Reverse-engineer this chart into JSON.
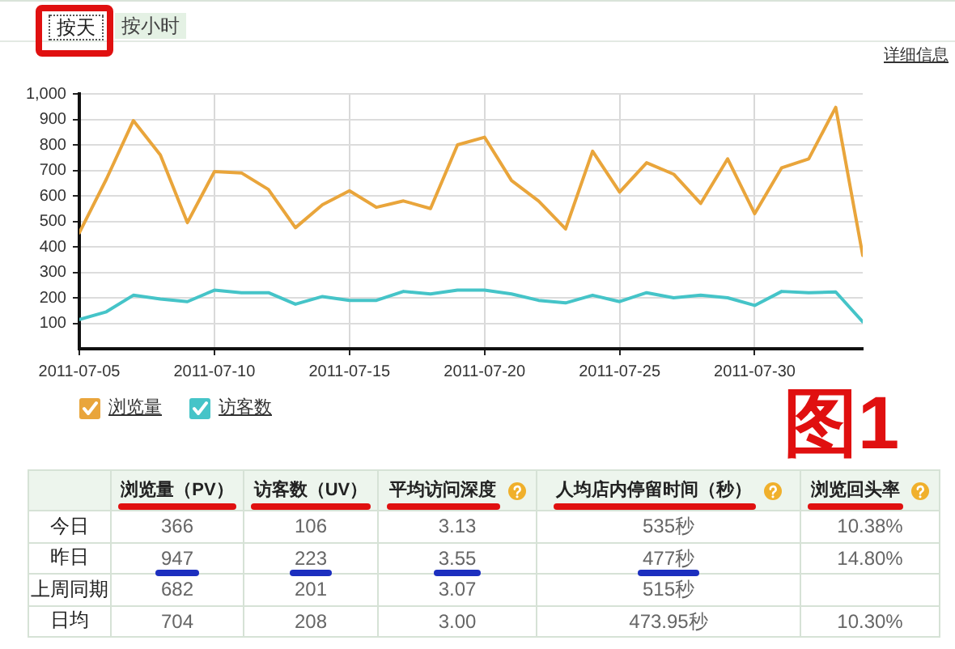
{
  "chart_data": [
    {
      "type": "line",
      "annotations": [
        "按天",
        "按小时",
        "详细信息",
        "图1"
      ],
      "x": [
        "2011-07-05",
        "2011-07-06",
        "2011-07-07",
        "2011-07-08",
        "2011-07-09",
        "2011-07-10",
        "2011-07-11",
        "2011-07-12",
        "2011-07-13",
        "2011-07-14",
        "2011-07-15",
        "2011-07-16",
        "2011-07-17",
        "2011-07-18",
        "2011-07-19",
        "2011-07-20",
        "2011-07-21",
        "2011-07-22",
        "2011-07-23",
        "2011-07-24",
        "2011-07-25",
        "2011-07-26",
        "2011-07-27",
        "2011-07-28",
        "2011-07-29",
        "2011-07-30",
        "2011-07-31",
        "2011-08-01",
        "2011-08-02",
        "2011-08-03"
      ],
      "series": [
        {
          "name": "浏览量",
          "color": "#e9a53b",
          "values": [
            455,
            665,
            895,
            760,
            495,
            695,
            690,
            625,
            475,
            565,
            620,
            555,
            580,
            550,
            800,
            830,
            660,
            580,
            470,
            775,
            615,
            730,
            685,
            570,
            745,
            530,
            710,
            745,
            947,
            366
          ]
        },
        {
          "name": "访客数",
          "color": "#45c4c8",
          "values": [
            115,
            145,
            210,
            195,
            185,
            230,
            220,
            220,
            175,
            205,
            190,
            190,
            225,
            215,
            230,
            230,
            215,
            190,
            180,
            210,
            185,
            220,
            200,
            210,
            200,
            170,
            225,
            220,
            223,
            106
          ]
        }
      ],
      "xlim": [
        "2011-07-05",
        "2011-08-03"
      ],
      "xticks": [
        "2011-07-05",
        "2011-07-10",
        "2011-07-15",
        "2011-07-20",
        "2011-07-25",
        "2011-07-30"
      ],
      "ylim": [
        0,
        1000
      ],
      "yticks": [
        100,
        200,
        300,
        400,
        500,
        600,
        700,
        800,
        900,
        {
          "value": 1000,
          "label": "1,000"
        }
      ],
      "grid": true,
      "legend": "bottom"
    },
    {
      "type": "other",
      "categories": [
        "浏览量（PV）",
        "访客数（UV）",
        "平均访问深度",
        "人均店内停留时间（秒）",
        "浏览回头率"
      ],
      "y_categories": [
        "今日",
        "昨日",
        "上周同期",
        "日均"
      ],
      "cell_labels": [
        [
          "366",
          "106",
          "3.13",
          "535秒",
          "10.38%"
        ],
        [
          "947",
          "223",
          "3.55",
          "477秒",
          "14.80%"
        ],
        [
          "682",
          "201",
          "3.07",
          "515秒",
          null
        ],
        [
          "704",
          "208",
          "3.00",
          "473.95秒",
          "10.30%"
        ]
      ]
    }
  ]
}
